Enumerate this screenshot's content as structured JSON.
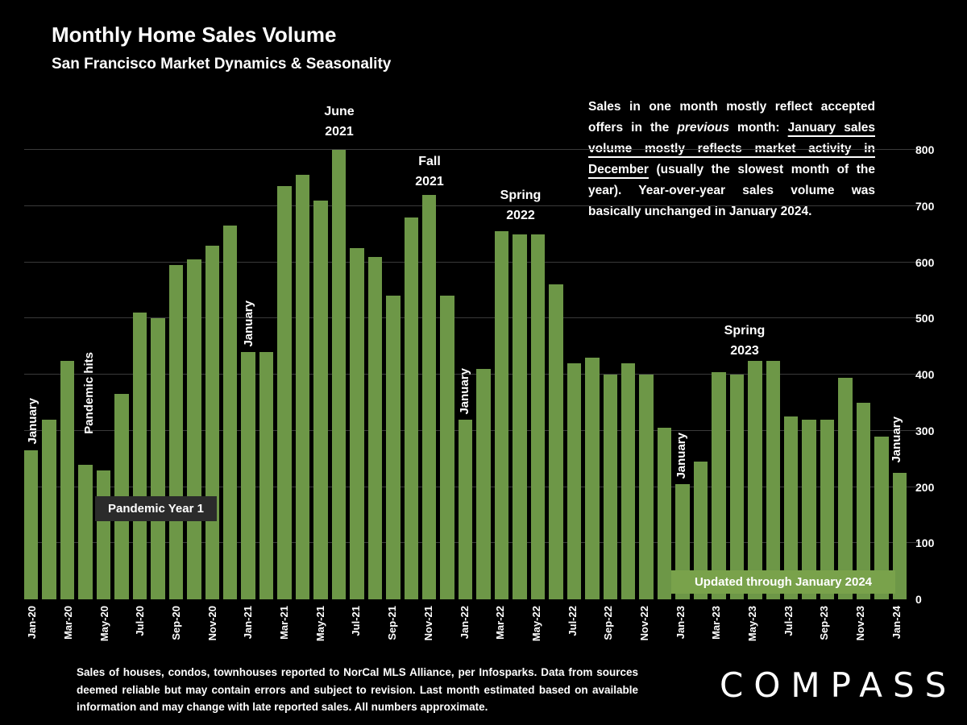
{
  "title": "Monthly Home Sales Volume",
  "subtitle": "San Francisco Market Dynamics & Seasonality",
  "commentary": {
    "part1": "Sales in one month mostly reflect accepted offers in the ",
    "italic": "previous",
    "part2": " month: ",
    "underline": "January sales volume mostly reflects market activity in December",
    "part3": " (usually the slowest month of the year). Year-over-year sales volume was basically unchanged in January 2024."
  },
  "annotations": {
    "jan20": "January",
    "pandemic_hits": "Pandemic hits",
    "jan21": "January",
    "june2021_line1": "June",
    "june2021_line2": "2021",
    "fall2021_line1": "Fall",
    "fall2021_line2": "2021",
    "jan22": "January",
    "spring2022_line1": "Spring",
    "spring2022_line2": "2022",
    "jan23": "January",
    "spring2023_line1": "Spring",
    "spring2023_line2": "2023",
    "jan24": "January",
    "pandemic_year1": "Pandemic Year 1",
    "updated_banner": "Updated through January 2024"
  },
  "footer": "Sales of houses, condos, townhouses reported to NorCal MLS Alliance, per Infosparks. Data from sources deemed reliable but may contain errors and subject to revision. Last month estimated based on available information and may change with late reported sales. All numbers approximate.",
  "logo": "COMPASS",
  "chart_data": {
    "type": "bar",
    "title": "Monthly Home Sales Volume",
    "xlabel": "",
    "ylabel": "",
    "ylim": [
      0,
      800
    ],
    "y_ticks": [
      0,
      100,
      200,
      300,
      400,
      500,
      600,
      700,
      800
    ],
    "y_axis_side": "right",
    "grid": true,
    "bar_color": "#6d9747",
    "x_tick_every": 2,
    "x": [
      "Jan-20",
      "Feb-20",
      "Mar-20",
      "Apr-20",
      "May-20",
      "Jun-20",
      "Jul-20",
      "Aug-20",
      "Sep-20",
      "Oct-20",
      "Nov-20",
      "Dec-20",
      "Jan-21",
      "Feb-21",
      "Mar-21",
      "Apr-21",
      "May-21",
      "Jun-21",
      "Jul-21",
      "Aug-21",
      "Sep-21",
      "Oct-21",
      "Nov-21",
      "Dec-21",
      "Jan-22",
      "Feb-22",
      "Mar-22",
      "Apr-22",
      "May-22",
      "Jun-22",
      "Jul-22",
      "Aug-22",
      "Sep-22",
      "Oct-22",
      "Nov-22",
      "Dec-22",
      "Jan-23",
      "Feb-23",
      "Mar-23",
      "Apr-23",
      "May-23",
      "Jun-23",
      "Jul-23",
      "Aug-23",
      "Sep-23",
      "Oct-23",
      "Nov-23",
      "Dec-23",
      "Jan-24"
    ],
    "values": [
      265,
      320,
      425,
      240,
      230,
      365,
      510,
      500,
      595,
      605,
      630,
      665,
      440,
      440,
      735,
      755,
      710,
      800,
      625,
      610,
      540,
      680,
      720,
      540,
      320,
      410,
      655,
      650,
      650,
      560,
      420,
      430,
      400,
      420,
      400,
      305,
      205,
      245,
      405,
      400,
      425,
      425,
      325,
      320,
      320,
      395,
      350,
      290,
      225
    ]
  }
}
